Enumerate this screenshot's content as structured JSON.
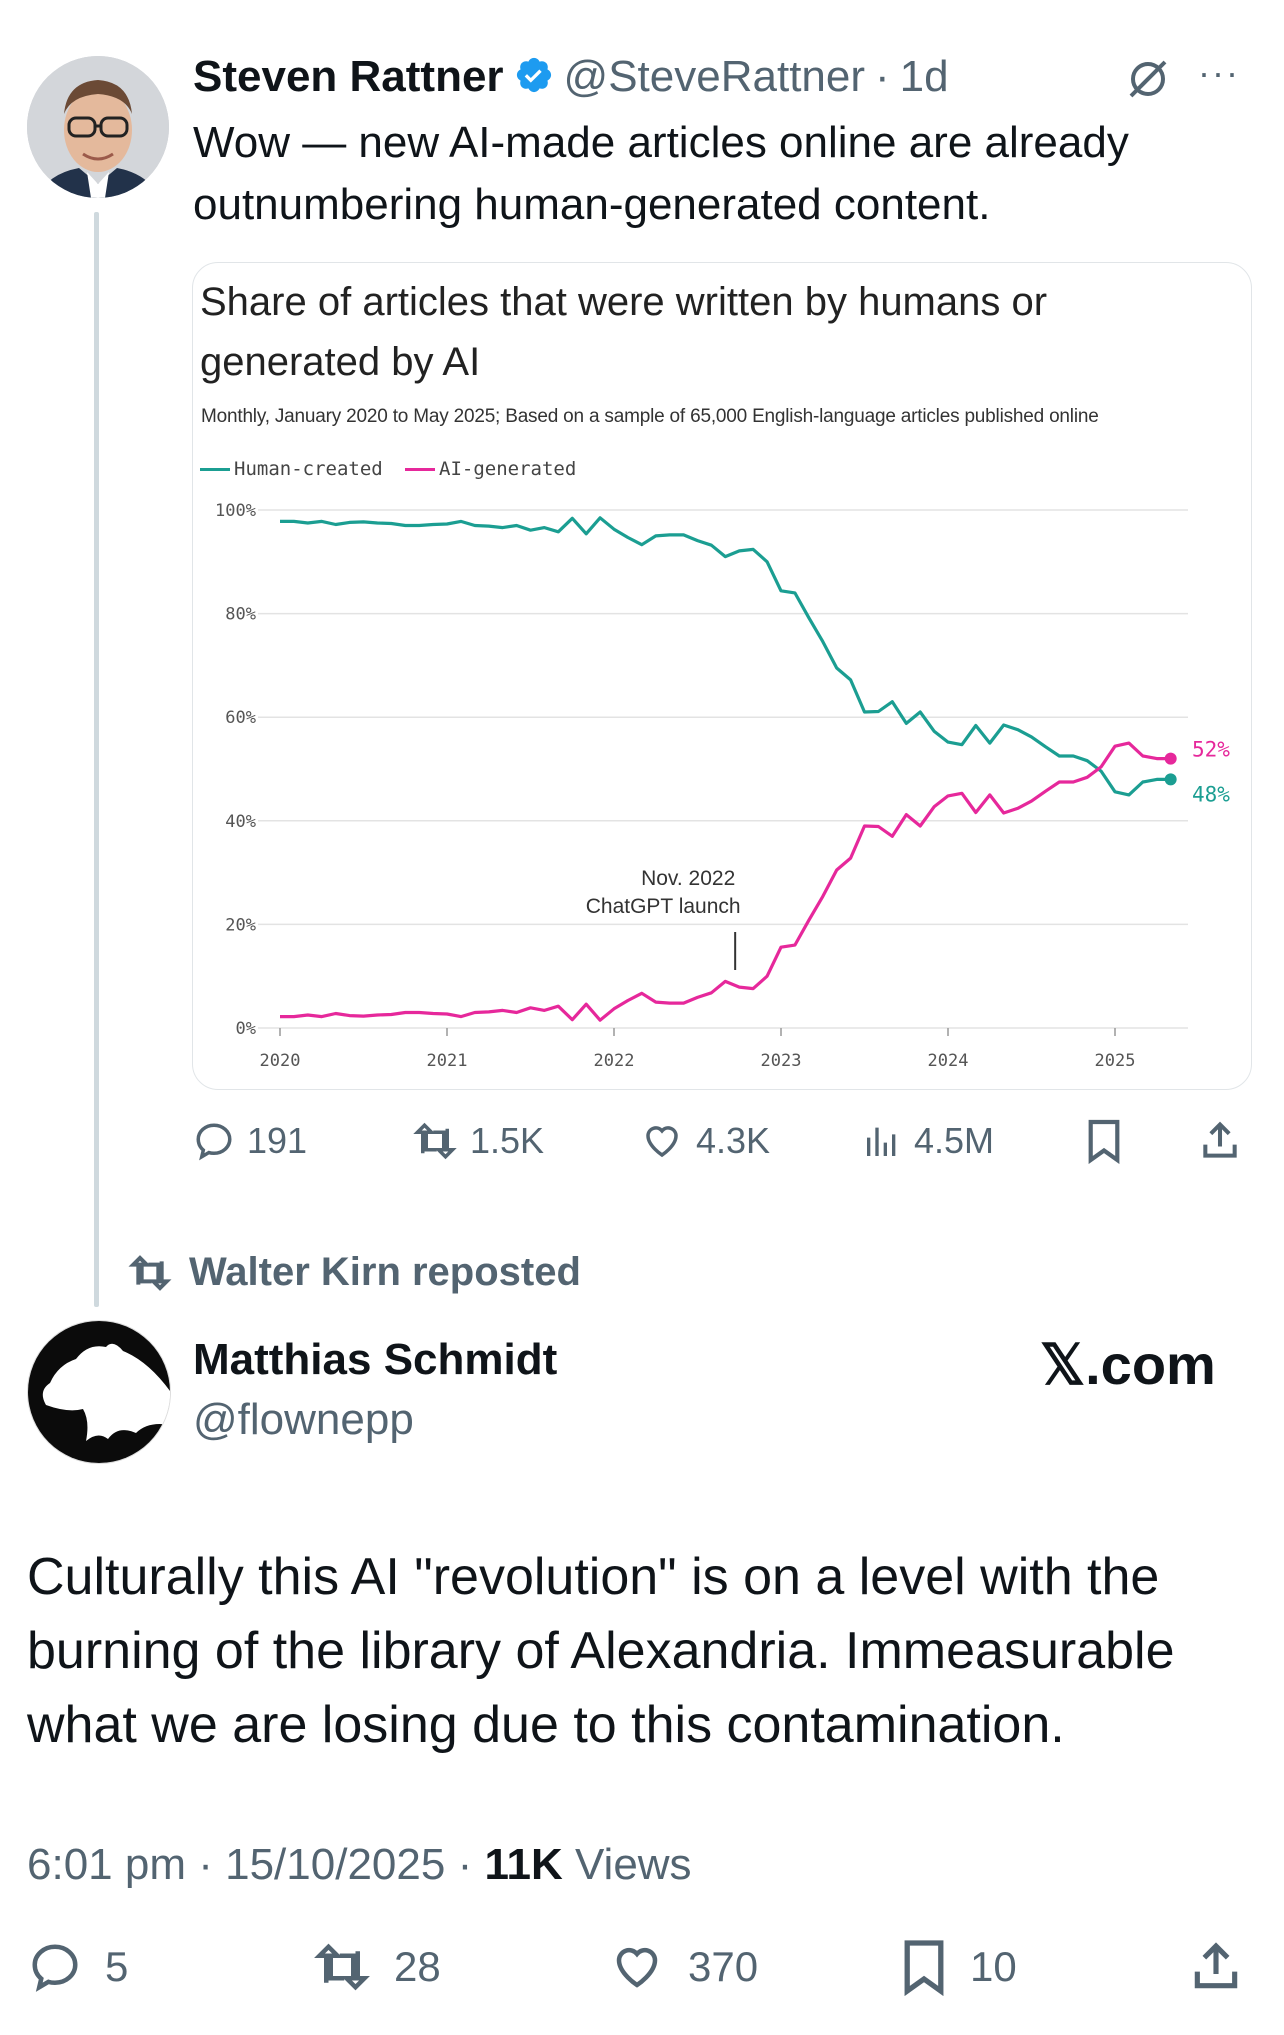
{
  "tweet": {
    "author_name": "Steven Rattner",
    "author_handle": "@SteveRattner",
    "time_sep": "·",
    "time_ago": "1d",
    "more": "···",
    "text_line1": "Wow — new AI-made articles online are already",
    "text_line2": "outnumbering human-generated content.",
    "metrics": {
      "replies": "191",
      "reposts": "1.5K",
      "likes": "4.3K",
      "views": "4.5M"
    }
  },
  "card": {
    "title_line1": "Share of articles that were written by humans or",
    "title_line2": "generated by AI",
    "subtitle": "Monthly, January 2020 to May 2025; Based on a sample of 65,000 English-language articles published online"
  },
  "chart_data": {
    "type": "line",
    "title": "Share of articles that were written by humans or generated by AI",
    "subtitle": "Monthly, January 2020 to May 2025; Based on a sample of 65,000 English-language articles published online",
    "x_ticks": [
      "2020",
      "2021",
      "2022",
      "2023",
      "2024",
      "2025"
    ],
    "y_ticks": [
      "0%",
      "20%",
      "40%",
      "60%",
      "80%",
      "100%"
    ],
    "ylim": [
      0,
      100
    ],
    "xlim": [
      "2020-01",
      "2025-05"
    ],
    "grid": true,
    "legend_position": "top-left",
    "annotation": {
      "line1": "Nov. 2022",
      "line2": "ChatGPT launch",
      "x": "2022-11"
    },
    "end_labels": {
      "ai": "52%",
      "human": "48%"
    },
    "colors": {
      "human": "#1b9e92",
      "ai": "#e6289b"
    },
    "series": [
      {
        "name": "Human-created",
        "key": "human",
        "points": [
          [
            "2020-01",
            97.8
          ],
          [
            "2020-02",
            97.8
          ],
          [
            "2020-03",
            97.5
          ],
          [
            "2020-04",
            97.8
          ],
          [
            "2020-05",
            97.2
          ],
          [
            "2020-06",
            97.6
          ],
          [
            "2020-07",
            97.7
          ],
          [
            "2020-08",
            97.5
          ],
          [
            "2020-09",
            97.4
          ],
          [
            "2020-10",
            97.0
          ],
          [
            "2020-11",
            97.0
          ],
          [
            "2020-12",
            97.2
          ],
          [
            "2021-01",
            97.3
          ],
          [
            "2021-02",
            97.8
          ],
          [
            "2021-03",
            97.0
          ],
          [
            "2021-04",
            96.9
          ],
          [
            "2021-05",
            96.6
          ],
          [
            "2021-06",
            97.0
          ],
          [
            "2021-07",
            96.1
          ],
          [
            "2021-08",
            96.6
          ],
          [
            "2021-09",
            95.8
          ],
          [
            "2021-10",
            98.4
          ],
          [
            "2021-11",
            95.4
          ],
          [
            "2021-12",
            98.5
          ],
          [
            "2022-01",
            96.3
          ],
          [
            "2022-02",
            94.7
          ],
          [
            "2022-03",
            93.3
          ],
          [
            "2022-04",
            95.0
          ],
          [
            "2022-05",
            95.2
          ],
          [
            "2022-06",
            95.2
          ],
          [
            "2022-07",
            94.1
          ],
          [
            "2022-08",
            93.2
          ],
          [
            "2022-09",
            91.0
          ],
          [
            "2022-10",
            92.1
          ],
          [
            "2022-11",
            92.4
          ],
          [
            "2022-12",
            90.0
          ],
          [
            "2023-01",
            84.4
          ],
          [
            "2023-02",
            84.0
          ],
          [
            "2023-03",
            79.2
          ],
          [
            "2023-04",
            74.6
          ],
          [
            "2023-05",
            69.5
          ],
          [
            "2023-06",
            67.2
          ],
          [
            "2023-07",
            61.0
          ],
          [
            "2023-08",
            61.1
          ],
          [
            "2023-09",
            63.0
          ],
          [
            "2023-10",
            58.8
          ],
          [
            "2023-11",
            61.0
          ],
          [
            "2023-12",
            57.3
          ],
          [
            "2024-01",
            55.2
          ],
          [
            "2024-02",
            54.7
          ],
          [
            "2024-03",
            58.4
          ],
          [
            "2024-04",
            55.0
          ],
          [
            "2024-05",
            58.5
          ],
          [
            "2024-06",
            57.6
          ],
          [
            "2024-07",
            56.2
          ],
          [
            "2024-08",
            54.3
          ],
          [
            "2024-09",
            52.5
          ],
          [
            "2024-10",
            52.5
          ],
          [
            "2024-11",
            51.6
          ],
          [
            "2024-12",
            49.6
          ],
          [
            "2025-01",
            45.6
          ],
          [
            "2025-02",
            45.0
          ],
          [
            "2025-03",
            47.5
          ],
          [
            "2025-04",
            48.0
          ],
          [
            "2025-05",
            48.0
          ]
        ]
      },
      {
        "name": "AI-generated",
        "key": "ai",
        "points": [
          [
            "2020-01",
            2.2
          ],
          [
            "2020-02",
            2.2
          ],
          [
            "2020-03",
            2.5
          ],
          [
            "2020-04",
            2.2
          ],
          [
            "2020-05",
            2.8
          ],
          [
            "2020-06",
            2.4
          ],
          [
            "2020-07",
            2.3
          ],
          [
            "2020-08",
            2.5
          ],
          [
            "2020-09",
            2.6
          ],
          [
            "2020-10",
            3.0
          ],
          [
            "2020-11",
            3.0
          ],
          [
            "2020-12",
            2.8
          ],
          [
            "2021-01",
            2.7
          ],
          [
            "2021-02",
            2.2
          ],
          [
            "2021-03",
            3.0
          ],
          [
            "2021-04",
            3.1
          ],
          [
            "2021-05",
            3.4
          ],
          [
            "2021-06",
            3.0
          ],
          [
            "2021-07",
            3.9
          ],
          [
            "2021-08",
            3.4
          ],
          [
            "2021-09",
            4.2
          ],
          [
            "2021-10",
            1.6
          ],
          [
            "2021-11",
            4.6
          ],
          [
            "2021-12",
            1.5
          ],
          [
            "2022-01",
            3.7
          ],
          [
            "2022-02",
            5.3
          ],
          [
            "2022-03",
            6.7
          ],
          [
            "2022-04",
            5.0
          ],
          [
            "2022-05",
            4.8
          ],
          [
            "2022-06",
            4.8
          ],
          [
            "2022-07",
            5.9
          ],
          [
            "2022-08",
            6.8
          ],
          [
            "2022-09",
            9.0
          ],
          [
            "2022-10",
            7.9
          ],
          [
            "2022-11",
            7.6
          ],
          [
            "2022-12",
            10.0
          ],
          [
            "2023-01",
            15.6
          ],
          [
            "2023-02",
            16.0
          ],
          [
            "2023-03",
            20.8
          ],
          [
            "2023-04",
            25.4
          ],
          [
            "2023-05",
            30.5
          ],
          [
            "2023-06",
            32.8
          ],
          [
            "2023-07",
            39.0
          ],
          [
            "2023-08",
            38.9
          ],
          [
            "2023-09",
            37.0
          ],
          [
            "2023-10",
            41.2
          ],
          [
            "2023-11",
            39.0
          ],
          [
            "2023-12",
            42.7
          ],
          [
            "2024-01",
            44.8
          ],
          [
            "2024-02",
            45.3
          ],
          [
            "2024-03",
            41.6
          ],
          [
            "2024-04",
            45.0
          ],
          [
            "2024-05",
            41.5
          ],
          [
            "2024-06",
            42.4
          ],
          [
            "2024-07",
            43.8
          ],
          [
            "2024-08",
            45.7
          ],
          [
            "2024-09",
            47.5
          ],
          [
            "2024-10",
            47.5
          ],
          [
            "2024-11",
            48.4
          ],
          [
            "2024-12",
            50.4
          ],
          [
            "2025-01",
            54.4
          ],
          [
            "2025-02",
            55.0
          ],
          [
            "2025-03",
            52.5
          ],
          [
            "2025-04",
            52.0
          ],
          [
            "2025-05",
            52.0
          ]
        ]
      }
    ]
  },
  "repost": {
    "text": "Walter Kirn reposted"
  },
  "quoted": {
    "author_name": "Matthias Schmidt",
    "author_handle": "@flownepp",
    "source": "𝕏.com",
    "text": "Culturally this AI \"revolution\" is on a level with the burning of the library of Alexandria. Immeasurable what we are losing due to this contamination.",
    "time": "6:01 pm",
    "date": "15/10/2025",
    "views_count": "11K",
    "views_label": "Views",
    "sep": "·",
    "metrics": {
      "replies": "5",
      "reposts": "28",
      "likes": "370",
      "bookmarks": "10"
    }
  }
}
